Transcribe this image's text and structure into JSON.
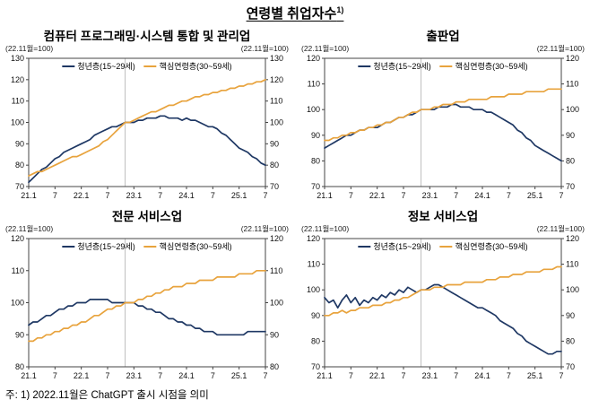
{
  "page": {
    "title": "연령별 취업자수",
    "title_sup": "1)",
    "footnote": "주: 1) 2022.11월은 ChatGPT 출시 시점을 의미"
  },
  "chart_data": [
    {
      "type": "line",
      "title": "컴퓨터 프로그래밍·시스템 통합 및 관리업",
      "axis_note_left": "(22.11월=100)",
      "axis_note_right": "(22.11월=100)",
      "ylim": [
        70,
        130
      ],
      "yticks": [
        70,
        80,
        90,
        100,
        110,
        120,
        130
      ],
      "xtick_labels": [
        "21.1",
        "7",
        "22.1",
        "7",
        "23.1",
        "7",
        "24.1",
        "7",
        "25.1",
        "7"
      ],
      "xtick_indices": [
        0,
        6,
        12,
        18,
        24,
        30,
        36,
        42,
        48,
        54
      ],
      "marker_index": 22,
      "marker_color": "#bfbfbf",
      "series": [
        {
          "name": "청년층(15~29세)",
          "color": "#1F3864",
          "values": [
            72,
            74,
            76,
            78,
            79,
            81,
            83,
            84,
            86,
            87,
            88,
            89,
            90,
            91,
            92,
            94,
            95,
            96,
            97,
            98,
            98,
            99,
            100,
            100,
            100,
            101,
            101,
            102,
            102,
            102,
            103,
            103,
            102,
            102,
            102,
            101,
            102,
            101,
            101,
            100,
            99,
            98,
            98,
            97,
            95,
            94,
            92,
            90,
            88,
            87,
            86,
            84,
            83,
            81,
            80
          ]
        },
        {
          "name": "핵심연령층(30~59세)",
          "color": "#E8A33D",
          "values": [
            75,
            76,
            77,
            77,
            78,
            79,
            80,
            81,
            82,
            83,
            84,
            84,
            85,
            86,
            87,
            88,
            89,
            91,
            92,
            94,
            96,
            98,
            100,
            100,
            101,
            102,
            103,
            104,
            105,
            105,
            106,
            107,
            108,
            108,
            109,
            110,
            110,
            111,
            112,
            112,
            113,
            113,
            114,
            114,
            115,
            115,
            116,
            116,
            117,
            117,
            118,
            118,
            119,
            119,
            120
          ]
        }
      ]
    },
    {
      "type": "line",
      "title": "출판업",
      "axis_note_left": "(22.11월=100)",
      "axis_note_right": "(22.11월=100)",
      "ylim": [
        70,
        120
      ],
      "yticks": [
        70,
        80,
        90,
        100,
        110,
        120
      ],
      "xtick_labels": [
        "21.1",
        "7",
        "22.1",
        "7",
        "23.1",
        "7",
        "24.1",
        "7",
        "25.1",
        "7"
      ],
      "xtick_indices": [
        0,
        6,
        12,
        18,
        24,
        30,
        36,
        42,
        48,
        54
      ],
      "marker_index": 22,
      "marker_color": "#bfbfbf",
      "series": [
        {
          "name": "청년층(15~29세)",
          "color": "#1F3864",
          "values": [
            85,
            86,
            87,
            88,
            89,
            90,
            90,
            91,
            92,
            92,
            93,
            93,
            93,
            94,
            95,
            95,
            96,
            97,
            97,
            98,
            98,
            99,
            100,
            100,
            100,
            100,
            101,
            101,
            101,
            102,
            102,
            101,
            101,
            101,
            100,
            100,
            100,
            99,
            99,
            98,
            97,
            96,
            95,
            94,
            92,
            91,
            89,
            88,
            86,
            85,
            84,
            83,
            82,
            81,
            80
          ]
        },
        {
          "name": "핵심연령층(30~59세)",
          "color": "#E8A33D",
          "values": [
            88,
            88,
            89,
            89,
            90,
            90,
            91,
            91,
            92,
            92,
            93,
            93,
            94,
            94,
            95,
            95,
            96,
            97,
            97,
            98,
            99,
            99,
            100,
            100,
            100,
            101,
            101,
            102,
            102,
            102,
            103,
            103,
            103,
            104,
            104,
            104,
            104,
            104,
            105,
            105,
            105,
            105,
            106,
            106,
            106,
            106,
            107,
            107,
            107,
            107,
            107,
            108,
            108,
            108,
            108
          ]
        }
      ]
    },
    {
      "type": "line",
      "title": "전문 서비스업",
      "axis_note_left": "(22.11월=100)",
      "axis_note_right": "(22.11월=100)",
      "ylim": [
        80,
        120
      ],
      "yticks": [
        80,
        90,
        100,
        110,
        120
      ],
      "xtick_labels": [
        "21.1",
        "7",
        "22.1",
        "7",
        "23.1",
        "7",
        "24.1",
        "7",
        "25.1",
        "7"
      ],
      "xtick_indices": [
        0,
        6,
        12,
        18,
        24,
        30,
        36,
        42,
        48,
        54
      ],
      "marker_index": 22,
      "marker_color": "#bfbfbf",
      "series": [
        {
          "name": "청년층(15~29세)",
          "color": "#1F3864",
          "values": [
            93,
            94,
            94,
            95,
            96,
            96,
            97,
            98,
            98,
            99,
            99,
            100,
            100,
            100,
            101,
            101,
            101,
            101,
            101,
            100,
            100,
            100,
            100,
            100,
            100,
            99,
            99,
            98,
            98,
            97,
            97,
            96,
            95,
            95,
            94,
            94,
            93,
            93,
            92,
            92,
            91,
            91,
            91,
            90,
            90,
            90,
            90,
            90,
            90,
            90,
            91,
            91,
            91,
            91,
            91
          ]
        },
        {
          "name": "핵심연령층(30~59세)",
          "color": "#E8A33D",
          "values": [
            88,
            88,
            89,
            89,
            90,
            90,
            91,
            91,
            92,
            92,
            93,
            93,
            94,
            94,
            95,
            96,
            96,
            97,
            98,
            98,
            99,
            99,
            100,
            100,
            100,
            101,
            101,
            102,
            102,
            103,
            103,
            104,
            104,
            105,
            105,
            105,
            106,
            106,
            106,
            107,
            107,
            107,
            107,
            108,
            108,
            108,
            108,
            108,
            109,
            109,
            109,
            109,
            110,
            110,
            110
          ]
        }
      ]
    },
    {
      "type": "line",
      "title": "정보 서비스업",
      "axis_note_left": "(22.11월=100)",
      "axis_note_right": "(22.11월=100)",
      "ylim": [
        70,
        120
      ],
      "yticks": [
        70,
        80,
        90,
        100,
        110,
        120
      ],
      "xtick_labels": [
        "21.1",
        "7",
        "22.1",
        "7",
        "23.1",
        "7",
        "24.1",
        "7",
        "25.1",
        "7"
      ],
      "xtick_indices": [
        0,
        6,
        12,
        18,
        24,
        30,
        36,
        42,
        48,
        54
      ],
      "marker_index": 22,
      "marker_color": "#bfbfbf",
      "series": [
        {
          "name": "청년층(15~29세)",
          "color": "#1F3864",
          "values": [
            97,
            95,
            96,
            93,
            96,
            98,
            95,
            97,
            94,
            96,
            95,
            97,
            96,
            98,
            97,
            99,
            98,
            100,
            99,
            101,
            100,
            99,
            100,
            100,
            101,
            102,
            102,
            101,
            100,
            99,
            98,
            97,
            96,
            95,
            94,
            93,
            93,
            92,
            91,
            90,
            88,
            87,
            86,
            85,
            83,
            82,
            80,
            79,
            78,
            77,
            76,
            75,
            75,
            76,
            76
          ]
        },
        {
          "name": "핵심연령층(30~59세)",
          "color": "#E8A33D",
          "values": [
            90,
            90,
            91,
            91,
            92,
            91,
            92,
            92,
            93,
            93,
            93,
            94,
            94,
            94,
            95,
            95,
            96,
            96,
            97,
            97,
            98,
            99,
            100,
            100,
            100,
            101,
            101,
            101,
            102,
            102,
            102,
            102,
            103,
            103,
            103,
            103,
            103,
            104,
            104,
            104,
            105,
            105,
            105,
            106,
            106,
            106,
            107,
            107,
            107,
            107,
            108,
            108,
            108,
            109,
            109
          ]
        }
      ]
    }
  ]
}
